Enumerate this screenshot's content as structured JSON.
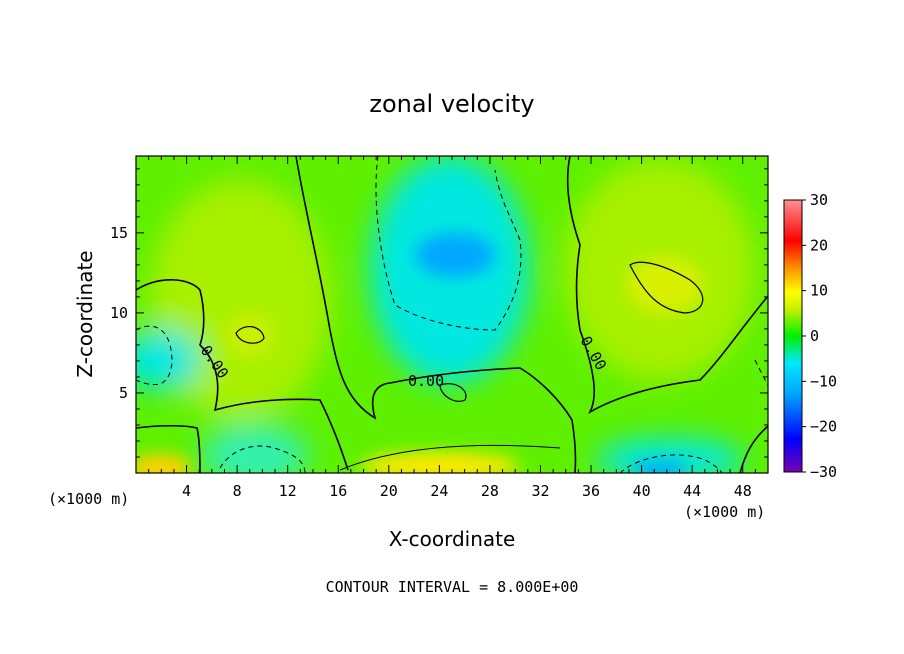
{
  "chart_data": {
    "type": "heatmap",
    "title": "zonal velocity",
    "xlabel": "X-coordinate",
    "ylabel": "Z-coordinate",
    "x_units": "(×1000 m)",
    "z_units": "(×1000 m)",
    "xlim": [
      0,
      50
    ],
    "ylim": [
      0,
      19.8
    ],
    "x_ticks": [
      "4",
      "8",
      "12",
      "16",
      "20",
      "24",
      "28",
      "32",
      "36",
      "40",
      "44",
      "48"
    ],
    "y_ticks": [
      "5",
      "10",
      "15"
    ],
    "colorbar": {
      "range": [
        -30,
        30
      ],
      "ticks": [
        "30",
        "20",
        "10",
        "0",
        "−10",
        "−20",
        "−30"
      ],
      "colors": [
        "#7a00b0",
        "#0000ff",
        "#00a0ff",
        "#00e8ff",
        "#00f000",
        "#c8f000",
        "#ffff00",
        "#ff9000",
        "#ff0000",
        "#ff8080"
      ]
    },
    "contour_interval": "CONTOUR INTERVAL = 8.000E+00",
    "contour_labels": [
      "0.00",
      "0.00",
      "0.00"
    ],
    "field_features": [
      {
        "name": "negative core upper-center",
        "x": 25,
        "z": 14,
        "value": -12
      },
      {
        "name": "positive core right",
        "x": 42,
        "z": 11.5,
        "value": 10
      },
      {
        "name": "positive core left",
        "x": 9.5,
        "z": 8.5,
        "value": 8
      },
      {
        "name": "positive near-surface left",
        "x": 2,
        "z": 0.5,
        "value": 14
      },
      {
        "name": "positive near-surface center",
        "x": 25,
        "z": 0.8,
        "value": 12
      },
      {
        "name": "negative near-surface right",
        "x": 41,
        "z": 0.5,
        "value": -14
      },
      {
        "name": "negative left edge",
        "x": 0.5,
        "z": 7.5,
        "value": -8
      }
    ]
  }
}
